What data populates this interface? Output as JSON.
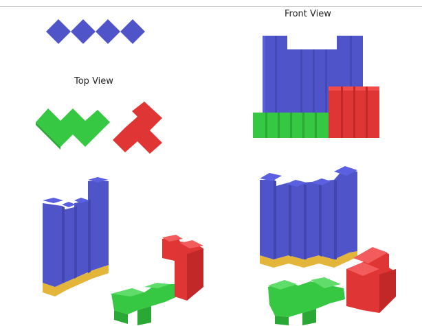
{
  "labels": {
    "front_view": "Front View",
    "top_view": "Top View"
  },
  "colors": {
    "blue": "#4f54c8",
    "green": "#36c743",
    "red": "#e03535",
    "yellow": "#e3b53a"
  }
}
